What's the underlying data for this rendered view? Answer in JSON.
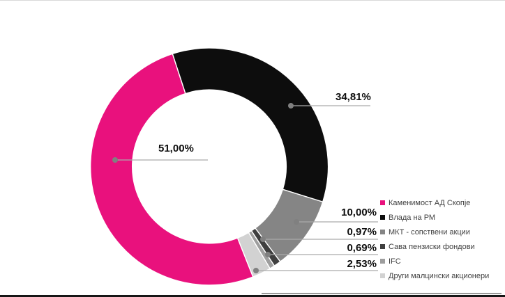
{
  "chart_data": {
    "type": "pie",
    "donut": true,
    "title": "",
    "legend_position": "right",
    "rotation_deg": 158.4,
    "inner_radius_ratio": 0.647,
    "slices": [
      {
        "label": "Каменимост АД Скопје",
        "value": 51.0,
        "value_label": "51,00%",
        "color": "#e9117d"
      },
      {
        "label": "Влада на РМ",
        "value": 34.81,
        "value_label": "34,81%",
        "color": "#0d0d0d"
      },
      {
        "label": "МКТ - сопствени акции",
        "value": 10.0,
        "value_label": "10,00%",
        "color": "#858585"
      },
      {
        "label": "Сава пензиски фондови",
        "value": 0.97,
        "value_label": "0,97%",
        "color": "#3f3f3f"
      },
      {
        "label": "IFC",
        "value": 0.69,
        "value_label": "0,69%",
        "color": "#9e9e9e"
      },
      {
        "label": "Други малцински акционери",
        "value": 2.53,
        "value_label": "2,53%",
        "color": "#d2d2d2"
      }
    ],
    "leader_line_color": "#ababab",
    "leader_dot_color": "#808080"
  }
}
